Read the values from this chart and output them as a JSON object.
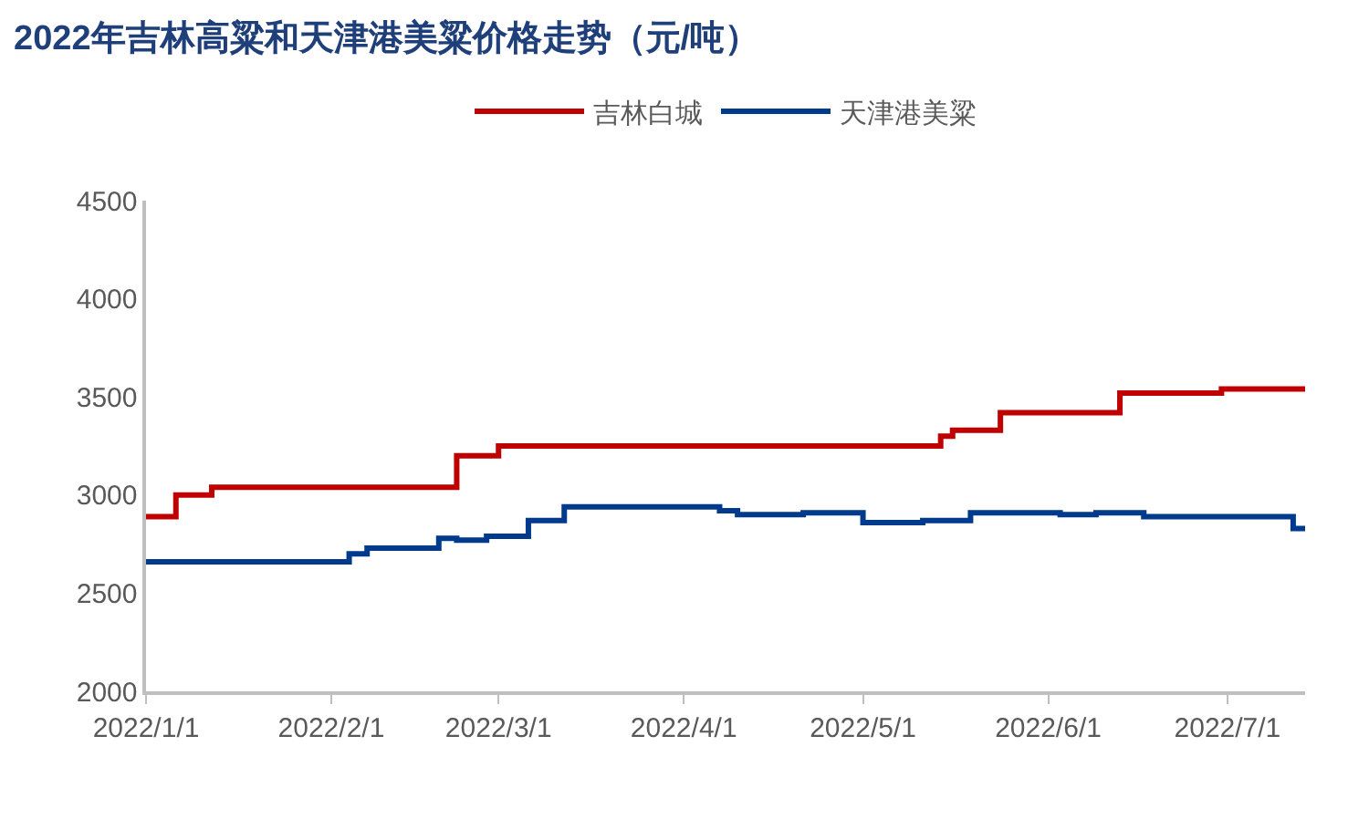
{
  "chart_data": {
    "type": "step",
    "title": "2022年吉林高粱和天津港美粱价格走势（元/吨）",
    "series": [
      {
        "name": "吉林白城",
        "color": "#c00000",
        "x": [
          "2022-01-01",
          "2022-01-06",
          "2022-01-12",
          "2022-02-22",
          "2022-03-01",
          "2022-05-14",
          "2022-05-16",
          "2022-05-18",
          "2022-05-24",
          "2022-06-13",
          "2022-06-30",
          "2022-07-14"
        ],
        "values": [
          2890,
          3000,
          3040,
          3200,
          3250,
          3300,
          3330,
          3330,
          3420,
          3520,
          3540,
          3540
        ]
      },
      {
        "name": "天津港美粱",
        "color": "#003a8c",
        "x": [
          "2022-01-01",
          "2022-02-04",
          "2022-02-07",
          "2022-02-19",
          "2022-02-22",
          "2022-02-27",
          "2022-03-06",
          "2022-03-12",
          "2022-04-07",
          "2022-04-10",
          "2022-04-21",
          "2022-05-01",
          "2022-05-11",
          "2022-05-19",
          "2022-06-03",
          "2022-06-09",
          "2022-06-17",
          "2022-07-12",
          "2022-07-14"
        ],
        "values": [
          2660,
          2700,
          2730,
          2780,
          2770,
          2790,
          2870,
          2940,
          2920,
          2900,
          2910,
          2860,
          2870,
          2910,
          2900,
          2910,
          2890,
          2830,
          2830
        ]
      }
    ],
    "xlim": [
      "2022-01-01",
      "2022-07-14"
    ],
    "xticks": [
      {
        "value": "2022-01-01",
        "label": "2022/1/1"
      },
      {
        "value": "2022-02-01",
        "label": "2022/2/1"
      },
      {
        "value": "2022-03-01",
        "label": "2022/3/1"
      },
      {
        "value": "2022-04-01",
        "label": "2022/4/1"
      },
      {
        "value": "2022-05-01",
        "label": "2022/5/1"
      },
      {
        "value": "2022-06-01",
        "label": "2022/6/1"
      },
      {
        "value": "2022-07-01",
        "label": "2022/7/1"
      }
    ],
    "ylim": [
      2000,
      4500
    ],
    "yticks": [
      2000,
      2500,
      3000,
      3500,
      4000,
      4500
    ],
    "grid": false,
    "legend": "top",
    "line_style": "solid",
    "marker": "none"
  }
}
